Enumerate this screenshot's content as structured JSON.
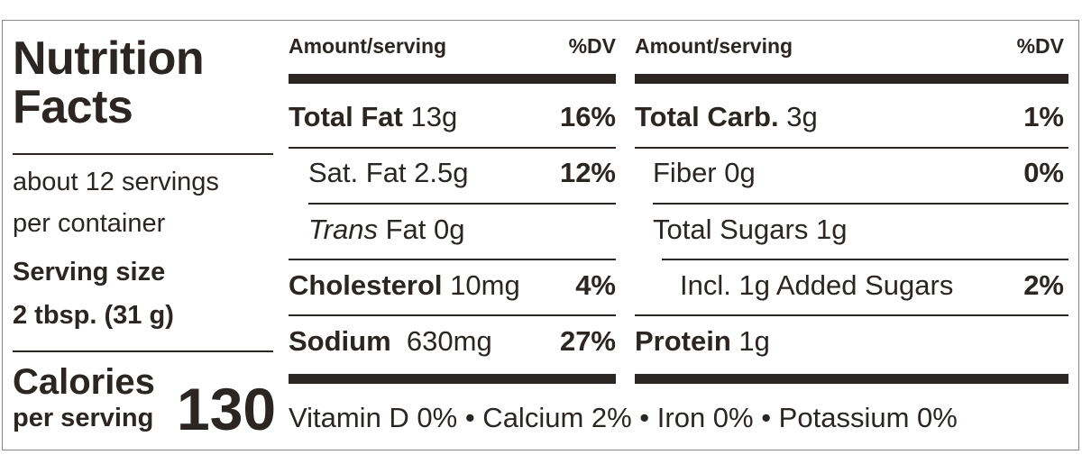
{
  "label": {
    "title_line1": "Nutrition",
    "title_line2": "Facts",
    "servings_line1": "about 12 servings",
    "servings_line2": "per container",
    "serving_size_label": "Serving size",
    "serving_size_value": "2 tbsp. (31 g)",
    "calories_label": "Calories",
    "calories_sub": "per serving",
    "calories_value": "130"
  },
  "left_col": {
    "header_amount": "Amount/serving",
    "header_dv": "%DV",
    "rows": [
      {
        "name": "Total Fat",
        "amount": "13g",
        "dv": "16%"
      },
      {
        "name": "Sat. Fat",
        "amount": "2.5g",
        "dv": "12%"
      },
      {
        "name": "Trans",
        "amount": "Fat 0g",
        "dv": ""
      },
      {
        "name": "Cholesterol",
        "amount": "10mg",
        "dv": "4%"
      },
      {
        "name": "Sodium",
        "amount": "630mg",
        "dv": "27%"
      }
    ]
  },
  "right_col": {
    "header_amount": "Amount/serving",
    "header_dv": "%DV",
    "rows": [
      {
        "name": "Total Carb.",
        "amount": "3g",
        "dv": "1%"
      },
      {
        "name": "Fiber",
        "amount": "0g",
        "dv": "0%"
      },
      {
        "name": "Total Sugars",
        "amount": "1g",
        "dv": ""
      },
      {
        "name": "Incl. 1g Added Sugars",
        "amount": "",
        "dv": "2%"
      },
      {
        "name": "Protein",
        "amount": "1g",
        "dv": ""
      }
    ]
  },
  "footer": {
    "vitamins": "Vitamin D 0% • Calcium 2% • Iron 0% • Potassium 0%"
  }
}
